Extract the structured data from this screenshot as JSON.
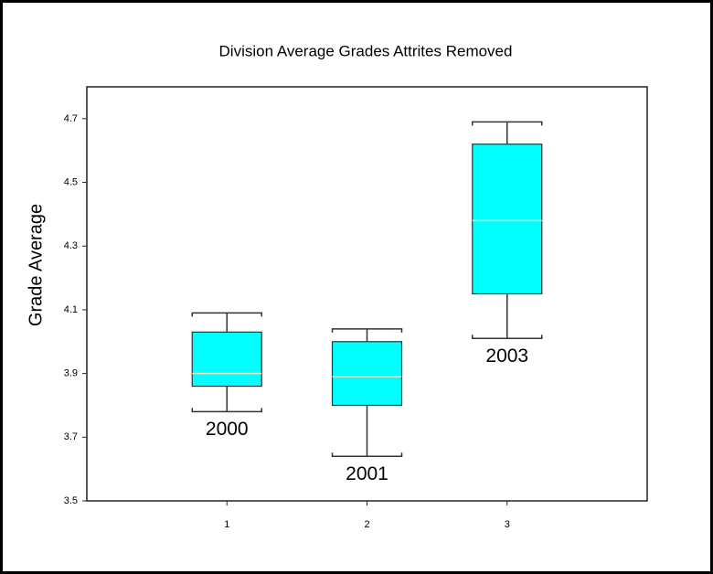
{
  "chart_data": {
    "type": "box",
    "title": "Division Average Grades Attrites Removed",
    "y_label": "Grade Average",
    "x": [
      1,
      2,
      3
    ],
    "min": [
      3.78,
      3.64,
      4.01
    ],
    "q1": [
      3.86,
      3.8,
      4.15
    ],
    "median": [
      3.9,
      3.89,
      4.38
    ],
    "q3": [
      4.03,
      4.0,
      4.62
    ],
    "max": [
      4.09,
      4.04,
      4.69
    ],
    "annotations": [
      "2000",
      "2001",
      "2003"
    ],
    "color": "#00ffff",
    "median_color": "#e8e8c0",
    "xlim": [
      0,
      4
    ],
    "xticks": [
      1,
      2,
      3
    ],
    "ylim": [
      3.5,
      4.8
    ],
    "yticks": [
      3.5,
      3.7,
      3.9,
      4.1,
      4.3,
      4.5,
      4.7
    ]
  }
}
